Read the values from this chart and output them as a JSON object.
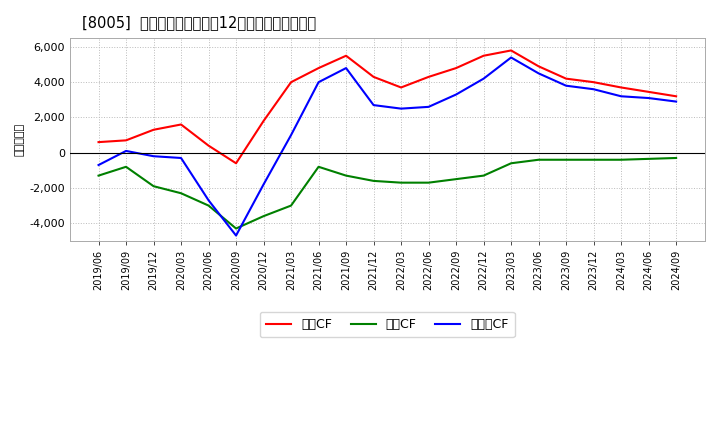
{
  "title": "[8005]  キャッシュフローの12か月移動合計の推移",
  "ylabel": "（百万円）",
  "background_color": "#ffffff",
  "grid_color": "#bbbbbb",
  "ylim": [
    -5000,
    6500
  ],
  "yticks": [
    -4000,
    -2000,
    0,
    2000,
    4000,
    6000
  ],
  "x_labels": [
    "2019/06",
    "2019/09",
    "2019/12",
    "2020/03",
    "2020/06",
    "2020/09",
    "2020/12",
    "2021/03",
    "2021/06",
    "2021/09",
    "2021/12",
    "2022/03",
    "2022/06",
    "2022/09",
    "2022/12",
    "2023/03",
    "2023/06",
    "2023/09",
    "2023/12",
    "2024/03",
    "2024/06",
    "2024/09"
  ],
  "operating_cf": [
    600,
    700,
    1300,
    1600,
    400,
    -600,
    1800,
    4000,
    4800,
    5500,
    4300,
    3700,
    4300,
    4800,
    5500,
    5800,
    4900,
    4200,
    4000,
    3700,
    3450,
    3200
  ],
  "investing_cf": [
    -1300,
    -800,
    -1900,
    -2300,
    -3000,
    -4300,
    -3600,
    -3000,
    -800,
    -1300,
    -1600,
    -1700,
    -1700,
    -1500,
    -1300,
    -600,
    -400,
    -400,
    -400,
    -400,
    -350,
    -300
  ],
  "free_cf": [
    -700,
    100,
    -200,
    -300,
    -2700,
    -4700,
    -1800,
    1000,
    4000,
    4800,
    2700,
    2500,
    2600,
    3300,
    4200,
    5400,
    4500,
    3800,
    3600,
    3200,
    3100,
    2900
  ],
  "line_colors": {
    "operating": "#ff0000",
    "investing": "#008000",
    "free": "#0000ff"
  },
  "legend_labels": [
    "営業CF",
    "投資CF",
    "フリーCF"
  ]
}
